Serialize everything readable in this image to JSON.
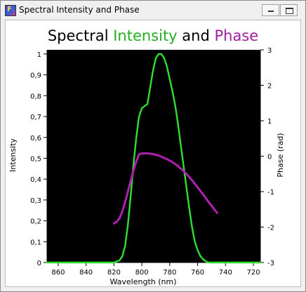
{
  "window": {
    "title": "Spectral Intensity and Phase",
    "icon": "app-icon"
  },
  "chart_data": {
    "type": "line",
    "title_parts": [
      {
        "text": "Spectral ",
        "color": "#000000"
      },
      {
        "text": "Intensity",
        "color": "#22b022"
      },
      {
        "text": " and ",
        "color": "#000000"
      },
      {
        "text": "Phase",
        "color": "#a020a0"
      }
    ],
    "xlabel": "Wavelength (nm)",
    "ylabel": "Intensity",
    "y2label": "Phase (rad)",
    "xlim": [
      868,
      715
    ],
    "ylim": [
      0,
      1.02
    ],
    "y2lim": [
      -3,
      3
    ],
    "x_ticks": [
      860,
      840,
      820,
      800,
      780,
      760,
      740,
      720
    ],
    "x_tick_labels": [
      "860",
      "840",
      "820",
      "800",
      "780",
      "760",
      "740",
      "720"
    ],
    "y_ticks": [
      0,
      0.1,
      0.2,
      0.3,
      0.4,
      0.5,
      0.6,
      0.7,
      0.8,
      0.9,
      1
    ],
    "y_tick_labels": [
      "0",
      "0,1",
      "0,2",
      "0,3",
      "0,4",
      "0,5",
      "0,6",
      "0,7",
      "0,8",
      "0,9",
      "1"
    ],
    "y2_ticks": [
      -3,
      -2,
      -1,
      0,
      1,
      2,
      3
    ],
    "y2_tick_labels": [
      "-3",
      "-2",
      "-1",
      "0",
      "1",
      "2",
      "3"
    ],
    "background": "#000000",
    "grid": false,
    "legend": "none",
    "series": [
      {
        "axis": "left",
        "color": "#2ee02e",
        "x": [
          868,
          830,
          820,
          816,
          814,
          812,
          810,
          808,
          806,
          804,
          802,
          800,
          798,
          796,
          794,
          792,
          790,
          788,
          786,
          784,
          782,
          780,
          778,
          776,
          774,
          772,
          770,
          768,
          766,
          764,
          762,
          760,
          758,
          756,
          754,
          752,
          750,
          748,
          740,
          715
        ],
        "y": [
          0.0,
          0.0,
          0.0,
          0.01,
          0.03,
          0.08,
          0.18,
          0.32,
          0.47,
          0.6,
          0.7,
          0.74,
          0.75,
          0.76,
          0.84,
          0.92,
          0.98,
          1.0,
          1.0,
          0.98,
          0.94,
          0.88,
          0.82,
          0.75,
          0.66,
          0.56,
          0.46,
          0.36,
          0.26,
          0.17,
          0.1,
          0.06,
          0.03,
          0.015,
          0.005,
          0.0,
          0.0,
          0.0,
          0.0,
          0.0
        ]
      },
      {
        "axis": "right",
        "color": "#b020b0",
        "x": [
          820,
          818,
          816,
          814,
          812,
          810,
          808,
          806,
          804,
          802,
          800,
          796,
          792,
          788,
          784,
          780,
          776,
          772,
          768,
          764,
          760,
          756,
          752,
          748,
          746
        ],
        "y": [
          -1.9,
          -1.85,
          -1.75,
          -1.55,
          -1.3,
          -1.0,
          -0.7,
          -0.4,
          -0.15,
          0.05,
          0.08,
          0.08,
          0.06,
          0.02,
          -0.05,
          -0.12,
          -0.22,
          -0.35,
          -0.5,
          -0.68,
          -0.88,
          -1.08,
          -1.3,
          -1.5,
          -1.6
        ]
      }
    ]
  }
}
